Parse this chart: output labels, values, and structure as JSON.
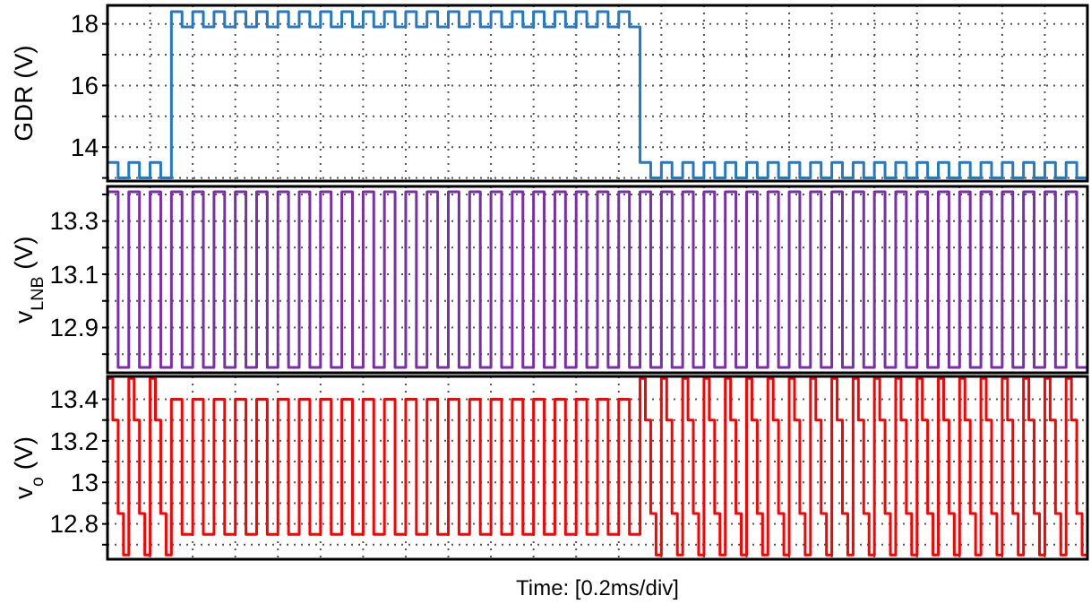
{
  "chart_data": [
    {
      "type": "step",
      "ylabel": "GDR (V)",
      "categories": [
        null,
        null,
        null,
        null,
        null,
        null,
        null,
        null,
        null,
        null,
        null,
        null,
        null,
        null,
        null,
        null,
        null,
        null,
        null,
        null,
        null,
        null,
        null,
        null,
        null,
        null,
        null,
        null,
        null,
        null,
        null,
        null,
        null,
        null,
        null,
        null,
        null,
        null,
        null,
        null,
        null,
        null,
        null,
        null,
        null,
        null,
        null,
        null,
        null,
        null,
        null,
        null,
        null,
        null,
        null,
        null,
        null,
        null,
        null,
        null,
        null,
        null,
        null,
        null,
        null,
        null,
        null,
        null,
        null,
        null,
        null,
        null,
        null,
        null,
        null,
        null,
        null,
        null,
        null,
        null,
        null,
        null,
        null,
        null,
        null,
        null,
        null,
        null,
        null,
        null,
        null,
        null,
        null,
        null,
        null,
        null,
        null,
        null,
        null,
        null,
        null,
        null,
        null,
        null,
        null,
        null,
        null,
        null,
        null,
        null,
        null,
        null,
        null,
        null,
        null,
        null,
        null,
        null,
        null,
        null,
        null,
        null,
        null,
        null,
        null,
        null,
        null,
        null,
        null,
        null,
        null,
        null,
        null,
        null,
        null,
        null,
        null,
        null,
        null,
        null,
        null,
        null,
        null,
        null,
        null,
        null,
        null,
        null,
        null,
        null,
        null,
        null,
        null,
        null,
        null,
        null,
        null,
        null,
        null,
        null,
        null,
        null,
        null,
        null,
        null,
        null,
        null,
        null,
        null,
        null,
        null,
        null,
        null,
        null,
        null,
        null,
        null,
        null,
        null,
        null,
        null,
        null,
        null,
        null
      ],
      "series": [
        {
          "color": "#2479c4",
          "values": [
            13.5,
            13.5,
            13,
            13,
            13.5,
            13.5,
            13,
            13,
            13.5,
            13.5,
            13,
            13,
            18.4,
            18.4,
            17.9,
            17.9,
            18.4,
            18.4,
            17.9,
            17.9,
            18.4,
            18.4,
            17.9,
            17.9,
            18.4,
            18.4,
            17.9,
            17.9,
            18.4,
            18.4,
            17.9,
            17.9,
            18.4,
            18.4,
            17.9,
            17.9,
            18.4,
            18.4,
            17.9,
            17.9,
            18.4,
            18.4,
            17.9,
            17.9,
            18.4,
            18.4,
            17.9,
            17.9,
            18.4,
            18.4,
            17.9,
            17.9,
            18.4,
            18.4,
            17.9,
            17.9,
            18.4,
            18.4,
            17.9,
            17.9,
            18.4,
            18.4,
            17.9,
            17.9,
            18.4,
            18.4,
            17.9,
            17.9,
            18.4,
            18.4,
            17.9,
            17.9,
            18.4,
            18.4,
            17.9,
            17.9,
            18.4,
            18.4,
            17.9,
            17.9,
            18.4,
            18.4,
            17.9,
            17.9,
            18.4,
            18.4,
            17.9,
            17.9,
            18.4,
            18.4,
            17.9,
            17.9,
            18.4,
            18.4,
            17.9,
            17.9,
            18.4,
            18.4,
            17.9,
            17.9,
            13.5,
            13.5,
            13,
            13,
            13.5,
            13.5,
            13,
            13,
            13.5,
            13.5,
            13,
            13,
            13.5,
            13.5,
            13,
            13,
            13.5,
            13.5,
            13,
            13,
            13.5,
            13.5,
            13,
            13,
            13.5,
            13.5,
            13,
            13,
            13.5,
            13.5,
            13,
            13,
            13.5,
            13.5,
            13,
            13,
            13.5,
            13.5,
            13,
            13,
            13.5,
            13.5,
            13,
            13,
            13.5,
            13.5,
            13,
            13,
            13.5,
            13.5,
            13,
            13,
            13.5,
            13.5,
            13,
            13,
            13.5,
            13.5,
            13,
            13,
            13.5,
            13.5,
            13,
            13,
            13.5,
            13.5,
            13,
            13,
            13.5,
            13.5,
            13,
            13,
            13.5,
            13.5,
            13,
            13,
            13.5,
            13.5,
            13,
            13,
            13.5,
            13.5,
            13,
            13
          ]
        }
      ],
      "ylim": [
        12.9,
        18.6
      ],
      "yticks": [
        {
          "value": 13,
          "label": null
        },
        14,
        {
          "value": 15,
          "label": null
        },
        16,
        {
          "value": 17,
          "label": null
        },
        18
      ],
      "grid": true,
      "tick_labels": "y"
    },
    {
      "type": "step",
      "ylabel": "v$_{LNB}$ (V)",
      "categories": [
        null,
        null,
        null,
        null,
        null,
        null,
        null,
        null,
        null,
        null,
        null,
        null,
        null,
        null,
        null,
        null,
        null,
        null,
        null,
        null,
        null,
        null,
        null,
        null,
        null,
        null,
        null,
        null,
        null,
        null,
        null,
        null,
        null,
        null,
        null,
        null,
        null,
        null,
        null,
        null,
        null,
        null,
        null,
        null,
        null,
        null,
        null,
        null,
        null,
        null,
        null,
        null,
        null,
        null,
        null,
        null,
        null,
        null,
        null,
        null,
        null,
        null,
        null,
        null,
        null,
        null,
        null,
        null,
        null,
        null,
        null,
        null,
        null,
        null,
        null,
        null,
        null,
        null,
        null,
        null,
        null,
        null,
        null,
        null,
        null,
        null,
        null,
        null,
        null,
        null,
        null,
        null,
        null,
        null,
        null,
        null,
        null,
        null,
        null,
        null,
        null,
        null,
        null,
        null,
        null,
        null,
        null,
        null,
        null,
        null,
        null,
        null,
        null,
        null,
        null,
        null,
        null,
        null,
        null,
        null,
        null,
        null,
        null,
        null,
        null,
        null,
        null,
        null,
        null,
        null,
        null,
        null,
        null,
        null,
        null,
        null,
        null,
        null,
        null,
        null,
        null,
        null,
        null,
        null,
        null,
        null,
        null,
        null,
        null,
        null,
        null,
        null,
        null,
        null,
        null,
        null,
        null,
        null,
        null,
        null,
        null,
        null,
        null,
        null,
        null,
        null,
        null,
        null,
        null,
        null,
        null,
        null,
        null,
        null,
        null,
        null,
        null,
        null,
        null,
        null,
        null,
        null,
        null,
        null
      ],
      "series": [
        {
          "color": "#7a2fa8",
          "values": [
            13.41,
            13.41,
            12.75,
            12.75,
            13.41,
            13.41,
            12.75,
            12.75,
            13.41,
            13.41,
            12.75,
            12.75,
            13.41,
            13.41,
            12.75,
            12.75,
            13.41,
            13.41,
            12.75,
            12.75,
            13.41,
            13.41,
            12.75,
            12.75,
            13.41,
            13.41,
            12.75,
            12.75,
            13.41,
            13.41,
            12.75,
            12.75,
            13.41,
            13.41,
            12.75,
            12.75,
            13.41,
            13.41,
            12.75,
            12.75,
            13.41,
            13.41,
            12.75,
            12.75,
            13.41,
            13.41,
            12.75,
            12.75,
            13.41,
            13.41,
            12.75,
            12.75,
            13.41,
            13.41,
            12.75,
            12.75,
            13.41,
            13.41,
            12.75,
            12.75,
            13.41,
            13.41,
            12.75,
            12.75,
            13.41,
            13.41,
            12.75,
            12.75,
            13.41,
            13.41,
            12.75,
            12.75,
            13.41,
            13.41,
            12.75,
            12.75,
            13.41,
            13.41,
            12.75,
            12.75,
            13.41,
            13.41,
            12.75,
            12.75,
            13.41,
            13.41,
            12.75,
            12.75,
            13.41,
            13.41,
            12.75,
            12.75,
            13.41,
            13.41,
            12.75,
            12.75,
            13.41,
            13.41,
            12.75,
            12.75,
            13.41,
            13.41,
            12.75,
            12.75,
            13.41,
            13.41,
            12.75,
            12.75,
            13.41,
            13.41,
            12.75,
            12.75,
            13.41,
            13.41,
            12.75,
            12.75,
            13.41,
            13.41,
            12.75,
            12.75,
            13.41,
            13.41,
            12.75,
            12.75,
            13.41,
            13.41,
            12.75,
            12.75,
            13.41,
            13.41,
            12.75,
            12.75,
            13.41,
            13.41,
            12.75,
            12.75,
            13.41,
            13.41,
            12.75,
            12.75,
            13.41,
            13.41,
            12.75,
            12.75,
            13.41,
            13.41,
            12.75,
            12.75,
            13.41,
            13.41,
            12.75,
            12.75,
            13.41,
            13.41,
            12.75,
            12.75,
            13.41,
            13.41,
            12.75,
            12.75,
            13.41,
            13.41,
            12.75,
            12.75,
            13.41,
            13.41,
            12.75,
            12.75,
            13.41,
            13.41,
            12.75,
            12.75,
            13.41,
            13.41,
            12.75,
            12.75,
            13.41,
            13.41,
            12.75,
            12.75,
            13.41,
            13.41,
            12.75,
            12.75
          ]
        }
      ],
      "ylim": [
        12.73,
        13.43
      ],
      "yticks": [
        {
          "value": 12.8,
          "label": null
        },
        12.9,
        {
          "value": 13,
          "label": null
        },
        13.1,
        {
          "value": 13.2,
          "label": null
        },
        13.3,
        {
          "value": 13.4,
          "label": null
        }
      ],
      "grid": true,
      "tick_labels": "y"
    },
    {
      "type": "step",
      "ylabel": "v$_{o}$ (V)",
      "xlabel": "Time: [0.2ms/div]",
      "categories": [
        null,
        null,
        null,
        null,
        null,
        null,
        null,
        null,
        null,
        null,
        null,
        null,
        null,
        null,
        null,
        null,
        null,
        null,
        null,
        null,
        null,
        null,
        null,
        null,
        null,
        null,
        null,
        null,
        null,
        null,
        null,
        null,
        null,
        null,
        null,
        null,
        null,
        null,
        null,
        null,
        null,
        null,
        null,
        null,
        null,
        null,
        null,
        null,
        null,
        null,
        null,
        null,
        null,
        null,
        null,
        null,
        null,
        null,
        null,
        null,
        null,
        null,
        null,
        null,
        null,
        null,
        null,
        null,
        null,
        null,
        null,
        null,
        null,
        null,
        null,
        null,
        null,
        null,
        null,
        null,
        null,
        null,
        null,
        null,
        null,
        null,
        null,
        null,
        null,
        null,
        null,
        null,
        null,
        null,
        null,
        null,
        null,
        null,
        null,
        null,
        null,
        null,
        null,
        null,
        null,
        null,
        null,
        null,
        null,
        null,
        null,
        null,
        null,
        null,
        null,
        null,
        null,
        null,
        null,
        null,
        null,
        null,
        null,
        null,
        null,
        null,
        null,
        null,
        null,
        null,
        null,
        null,
        null,
        null,
        null,
        null,
        null,
        null,
        null,
        null,
        null,
        null,
        null,
        null,
        null,
        null,
        null,
        null,
        null,
        null,
        null,
        null,
        null,
        null,
        null,
        null,
        null,
        null,
        null,
        null,
        null,
        null,
        null,
        null,
        null,
        null,
        null,
        null,
        null,
        null,
        null,
        null,
        null,
        null,
        null,
        null,
        null,
        null,
        null,
        null,
        null,
        null,
        null,
        null
      ],
      "series": [
        {
          "color": "#ff0000",
          "values": [
            13.5,
            13.3,
            12.85,
            12.65,
            13.5,
            13.3,
            12.85,
            12.65,
            13.5,
            13.3,
            12.85,
            12.65,
            13.4,
            13.4,
            12.75,
            12.75,
            13.4,
            13.4,
            12.75,
            12.75,
            13.4,
            13.4,
            12.75,
            12.75,
            13.4,
            13.4,
            12.75,
            12.75,
            13.4,
            13.4,
            12.75,
            12.75,
            13.4,
            13.4,
            12.75,
            12.75,
            13.4,
            13.4,
            12.75,
            12.75,
            13.4,
            13.4,
            12.75,
            12.75,
            13.4,
            13.4,
            12.75,
            12.75,
            13.4,
            13.4,
            12.75,
            12.75,
            13.4,
            13.4,
            12.75,
            12.75,
            13.4,
            13.4,
            12.75,
            12.75,
            13.4,
            13.4,
            12.75,
            12.75,
            13.4,
            13.4,
            12.75,
            12.75,
            13.4,
            13.4,
            12.75,
            12.75,
            13.4,
            13.4,
            12.75,
            12.75,
            13.4,
            13.4,
            12.75,
            12.75,
            13.4,
            13.4,
            12.75,
            12.75,
            13.4,
            13.4,
            12.75,
            12.75,
            13.4,
            13.4,
            12.75,
            12.75,
            13.4,
            13.4,
            12.75,
            12.75,
            13.4,
            13.4,
            12.75,
            12.75,
            13.5,
            13.3,
            12.85,
            12.65,
            13.5,
            13.3,
            12.85,
            12.65,
            13.5,
            13.3,
            12.85,
            12.65,
            13.5,
            13.3,
            12.85,
            12.65,
            13.5,
            13.3,
            12.85,
            12.65,
            13.5,
            13.3,
            12.85,
            12.65,
            13.5,
            13.3,
            12.85,
            12.65,
            13.5,
            13.3,
            12.85,
            12.65,
            13.5,
            13.3,
            12.85,
            12.65,
            13.5,
            13.3,
            12.85,
            12.65,
            13.5,
            13.3,
            12.85,
            12.65,
            13.5,
            13.3,
            12.85,
            12.65,
            13.5,
            13.3,
            12.85,
            12.65,
            13.5,
            13.3,
            12.85,
            12.65,
            13.5,
            13.3,
            12.85,
            12.65,
            13.5,
            13.3,
            12.85,
            12.65,
            13.5,
            13.3,
            12.85,
            12.65,
            13.5,
            13.3,
            12.85,
            12.65,
            13.5,
            13.3,
            12.85,
            12.65,
            13.5,
            13.3,
            12.85,
            12.65,
            13.5,
            13.3,
            12.85,
            12.65
          ]
        }
      ],
      "ylim": [
        12.63,
        13.51
      ],
      "yticks": [
        {
          "value": 12.7,
          "label": null
        },
        12.8,
        {
          "value": 12.9,
          "label": null
        },
        13,
        {
          "value": 13.1,
          "label": null
        },
        13.2,
        {
          "value": 13.3,
          "label": null
        },
        13.4
      ],
      "grid": true,
      "tick_labels": "y"
    }
  ]
}
